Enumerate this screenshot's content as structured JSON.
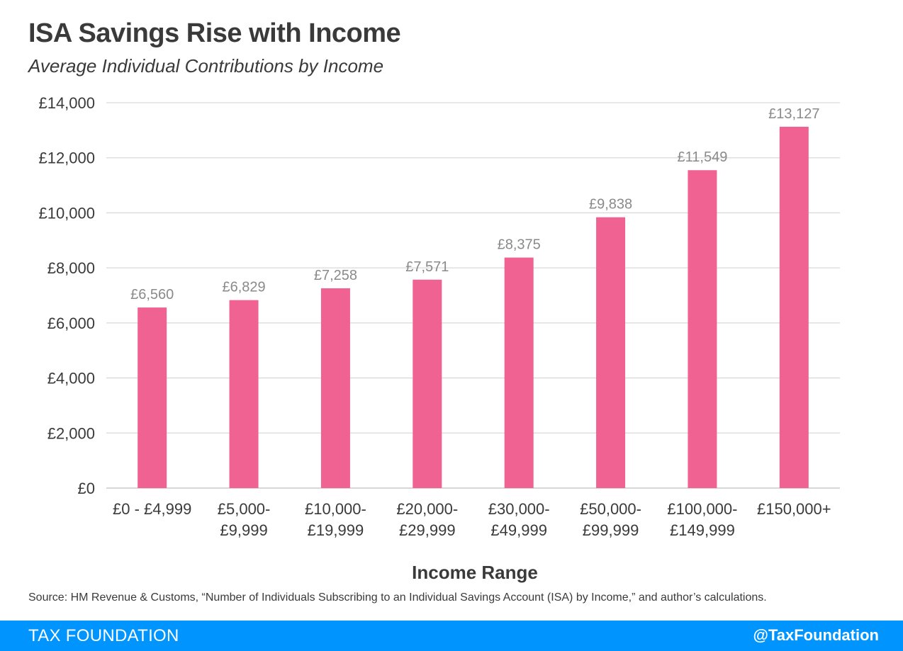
{
  "title": "ISA Savings Rise with Income",
  "subtitle": "Average Individual Contributions by Income",
  "source": "Source: HM Revenue & Customs, “Number of Individuals Subscribing to an Individual Savings Account (ISA) by Income,” and author’s calculations.",
  "footer": {
    "brand": "TAX FOUNDATION",
    "handle": "@TaxFoundation",
    "background_color": "#0094ff"
  },
  "chart_data": {
    "type": "bar",
    "categories": [
      [
        "£0 - £4,999"
      ],
      [
        "£5,000-",
        "£9,999"
      ],
      [
        "£10,000-",
        "£19,999"
      ],
      [
        "£20,000-",
        "£29,999"
      ],
      [
        "£30,000-",
        "£49,999"
      ],
      [
        "£50,000-",
        "£99,999"
      ],
      [
        "£100,000-",
        "£149,999"
      ],
      [
        "£150,000+"
      ]
    ],
    "values": [
      6560,
      6829,
      7258,
      7571,
      8375,
      9838,
      11549,
      13127
    ],
    "value_labels": [
      "£6,560",
      "£6,829",
      "£7,258",
      "£7,571",
      "£8,375",
      "£9,838",
      "£11,549",
      "£13,127"
    ],
    "y_ticks": [
      0,
      2000,
      4000,
      6000,
      8000,
      10000,
      12000,
      14000
    ],
    "y_tick_labels": [
      "£0",
      "£2,000",
      "£4,000",
      "£6,000",
      "£8,000",
      "£10,000",
      "£12,000",
      "£14,000"
    ],
    "ylim": [
      0,
      14000
    ],
    "xlabel": "Income Range",
    "ylabel": "",
    "grid": true,
    "bar_color": "#f06292",
    "grid_color": "#d9d9d9",
    "value_label_color": "#8a8a8a"
  }
}
